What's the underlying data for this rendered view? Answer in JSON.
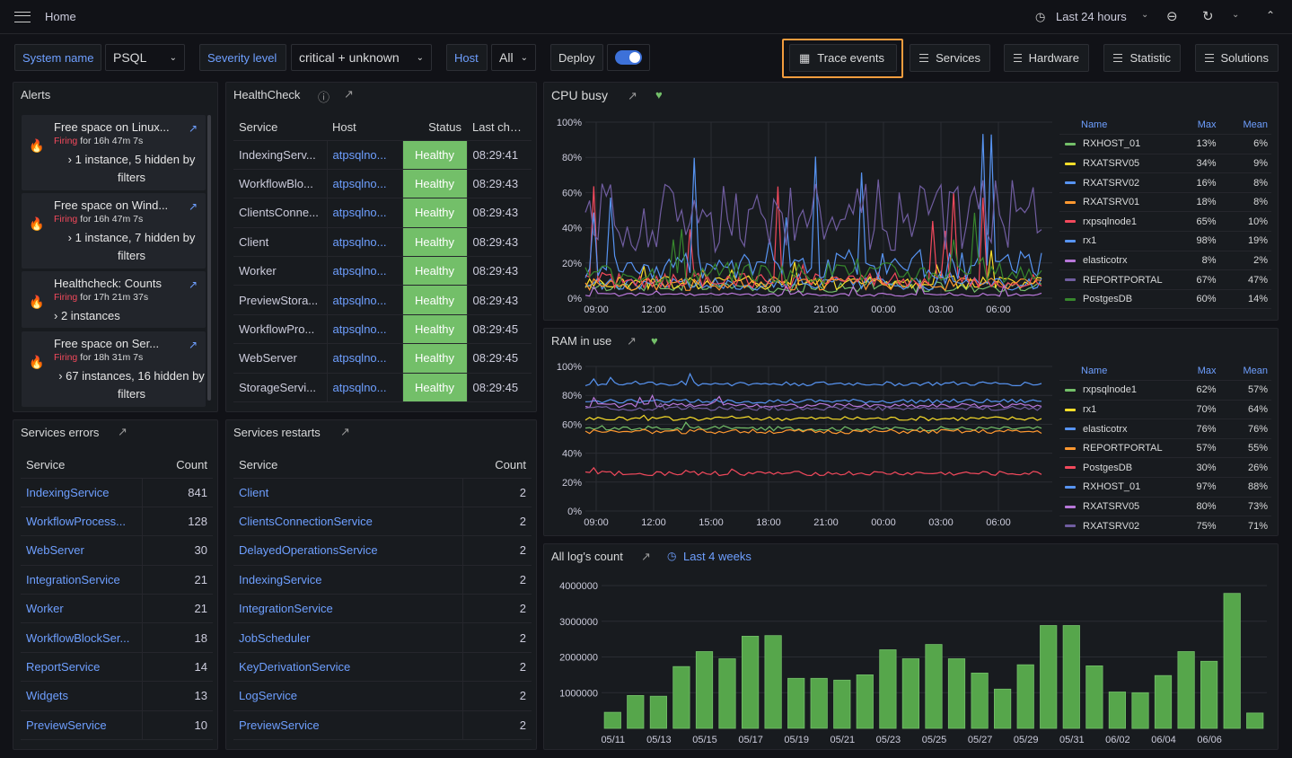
{
  "topbar": {
    "breadcrumb": "Home",
    "time_range": "Last 24 hours"
  },
  "filters": {
    "system_label": "System name",
    "system_value": "PSQL",
    "severity_label": "Severity level",
    "severity_value": "critical + unknown",
    "host_label": "Host",
    "host_value": "All",
    "deploy_label": "Deploy"
  },
  "nav_buttons": {
    "trace": "Trace events",
    "services": "Services",
    "hardware": "Hardware",
    "statistic": "Statistic",
    "solutions": "Solutions"
  },
  "alerts": {
    "title": "Alerts",
    "items": [
      {
        "title": "Free space on Linux...",
        "firing": "Firing",
        "duration": "for 16h 47m 7s",
        "detail": "› 1 instance, 5 hidden by filters"
      },
      {
        "title": "Free space on Wind...",
        "firing": "Firing",
        "duration": "for 16h 47m 7s",
        "detail": "› 1 instance, 7 hidden by filters"
      },
      {
        "title": "Healthcheck: Counts",
        "firing": "Firing",
        "duration": "for 17h 21m 37s",
        "detail": "› 2 instances"
      },
      {
        "title": "Free space on Ser...",
        "firing": "Firing",
        "duration": "for 18h 31m 7s",
        "detail": "› 67 instances, 16 hidden by filters"
      }
    ]
  },
  "healthcheck": {
    "title": "HealthCheck",
    "headers": [
      "Service",
      "Host",
      "Status",
      "Last check"
    ],
    "rows": [
      [
        "IndexingServ...",
        "atpsqlno...",
        "Healthy",
        "08:29:41"
      ],
      [
        "WorkflowBlo...",
        "atpsqlno...",
        "Healthy",
        "08:29:43"
      ],
      [
        "ClientsConne...",
        "atpsqlno...",
        "Healthy",
        "08:29:43"
      ],
      [
        "Client",
        "atpsqlno...",
        "Healthy",
        "08:29:43"
      ],
      [
        "Worker",
        "atpsqlno...",
        "Healthy",
        "08:29:43"
      ],
      [
        "PreviewStora...",
        "atpsqlno...",
        "Healthy",
        "08:29:43"
      ],
      [
        "WorkflowPro...",
        "atpsqlno...",
        "Healthy",
        "08:29:45"
      ],
      [
        "WebServer",
        "atpsqlno...",
        "Healthy",
        "08:29:45"
      ],
      [
        "StorageServi...",
        "atpsqlno...",
        "Healthy",
        "08:29:45"
      ]
    ]
  },
  "services_errors": {
    "title": "Services errors",
    "headers": [
      "Service",
      "Count"
    ],
    "rows": [
      [
        "IndexingService",
        "841"
      ],
      [
        "WorkflowProcess...",
        "128"
      ],
      [
        "WebServer",
        "30"
      ],
      [
        "IntegrationService",
        "21"
      ],
      [
        "Worker",
        "21"
      ],
      [
        "WorkflowBlockSer...",
        "18"
      ],
      [
        "ReportService",
        "14"
      ],
      [
        "Widgets",
        "13"
      ],
      [
        "PreviewService",
        "10"
      ]
    ]
  },
  "services_restarts": {
    "title": "Services restarts",
    "headers": [
      "Service",
      "Count"
    ],
    "rows": [
      [
        "Client",
        "2"
      ],
      [
        "ClientsConnectionService",
        "2"
      ],
      [
        "DelayedOperationsService",
        "2"
      ],
      [
        "IndexingService",
        "2"
      ],
      [
        "IntegrationService",
        "2"
      ],
      [
        "JobScheduler",
        "2"
      ],
      [
        "KeyDerivationService",
        "2"
      ],
      [
        "LogService",
        "2"
      ],
      [
        "PreviewService",
        "2"
      ]
    ]
  },
  "chart_data": [
    {
      "type": "line",
      "title": "CPU busy",
      "x_ticks": [
        "09:00",
        "12:00",
        "15:00",
        "18:00",
        "21:00",
        "00:00",
        "03:00",
        "06:00"
      ],
      "y_ticks": [
        "0%",
        "20%",
        "40%",
        "60%",
        "80%",
        "100%"
      ],
      "ylim": [
        0,
        100
      ],
      "legend_headers": [
        "Name",
        "Max",
        "Mean"
      ],
      "series": [
        {
          "name": "RXHOST_01",
          "max": "13%",
          "mean": "6%",
          "color": "#73bf69"
        },
        {
          "name": "RXATSRV05",
          "max": "34%",
          "mean": "9%",
          "color": "#fade2a"
        },
        {
          "name": "RXATSRV02",
          "max": "16%",
          "mean": "8%",
          "color": "#5794f2"
        },
        {
          "name": "RXATSRV01",
          "max": "18%",
          "mean": "8%",
          "color": "#ff9830"
        },
        {
          "name": "rxpsqlnode1",
          "max": "65%",
          "mean": "10%",
          "color": "#f2495c"
        },
        {
          "name": "rx1",
          "max": "98%",
          "mean": "19%",
          "color": "#5794f2"
        },
        {
          "name": "elasticotrx",
          "max": "8%",
          "mean": "2%",
          "color": "#b877d9"
        },
        {
          "name": "REPORTPORTAL",
          "max": "67%",
          "mean": "47%",
          "color": "#705da0"
        },
        {
          "name": "PostgesDB",
          "max": "60%",
          "mean": "14%",
          "color": "#37872d"
        }
      ]
    },
    {
      "type": "line",
      "title": "RAM in use",
      "x_ticks": [
        "09:00",
        "12:00",
        "15:00",
        "18:00",
        "21:00",
        "00:00",
        "03:00",
        "06:00"
      ],
      "y_ticks": [
        "0%",
        "20%",
        "40%",
        "60%",
        "80%",
        "100%"
      ],
      "ylim": [
        0,
        100
      ],
      "legend_headers": [
        "Name",
        "Max",
        "Mean"
      ],
      "series": [
        {
          "name": "rxpsqlnode1",
          "max": "62%",
          "mean": "57%",
          "color": "#73bf69"
        },
        {
          "name": "rx1",
          "max": "70%",
          "mean": "64%",
          "color": "#fade2a"
        },
        {
          "name": "elasticotrx",
          "max": "76%",
          "mean": "76%",
          "color": "#5794f2"
        },
        {
          "name": "REPORTPORTAL",
          "max": "57%",
          "mean": "55%",
          "color": "#ff9830"
        },
        {
          "name": "PostgesDB",
          "max": "30%",
          "mean": "26%",
          "color": "#f2495c"
        },
        {
          "name": "RXHOST_01",
          "max": "97%",
          "mean": "88%",
          "color": "#5794f2"
        },
        {
          "name": "RXATSRV05",
          "max": "80%",
          "mean": "73%",
          "color": "#b877d9"
        },
        {
          "name": "RXATSRV02",
          "max": "75%",
          "mean": "71%",
          "color": "#705da0"
        }
      ]
    },
    {
      "type": "bar",
      "title": "All log's count",
      "time_badge": "Last 4 weeks",
      "x_ticks": [
        "05/11",
        "05/13",
        "05/15",
        "05/17",
        "05/19",
        "05/21",
        "05/23",
        "05/25",
        "05/27",
        "05/29",
        "05/31",
        "06/02",
        "06/04",
        "06/06"
      ],
      "y_ticks": [
        "1000000",
        "2000000",
        "3000000",
        "4000000"
      ],
      "ylim": [
        0,
        4000000
      ],
      "values": [
        450000,
        920000,
        900000,
        1730000,
        2150000,
        1950000,
        2580000,
        2600000,
        1400000,
        1400000,
        1350000,
        1500000,
        2200000,
        1950000,
        2350000,
        1950000,
        1550000,
        1100000,
        1780000,
        2880000,
        2880000,
        1750000,
        1020000,
        1000000,
        1480000,
        2150000,
        1880000,
        3780000,
        430000
      ],
      "color": "#73bf69"
    }
  ]
}
